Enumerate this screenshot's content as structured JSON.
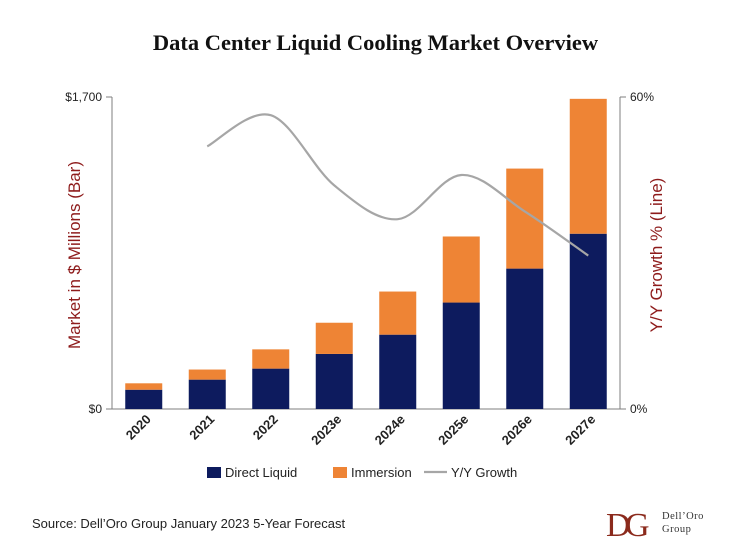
{
  "chart_data": {
    "type": "bar",
    "title": "Data Center Liquid Cooling Market Overview",
    "categories": [
      "2020",
      "2021",
      "2022",
      "2023e",
      "2024e",
      "2025e",
      "2026e",
      "2027e"
    ],
    "series": [
      {
        "name": "Direct Liquid",
        "type": "bar",
        "stacked": true,
        "axis": "left",
        "color": "#0d1b5e",
        "values": [
          105,
          160,
          220,
          300,
          405,
          580,
          765,
          955
        ]
      },
      {
        "name": "Immersion",
        "type": "bar",
        "stacked": true,
        "axis": "left",
        "color": "#ee8435",
        "values": [
          35,
          55,
          105,
          170,
          235,
          360,
          545,
          735
        ]
      },
      {
        "name": "Y/Y Growth",
        "type": "line",
        "axis": "right",
        "color": "#a6a6a6",
        "values": [
          null,
          50.5,
          56.5,
          43,
          36.5,
          45,
          38,
          29.5
        ]
      }
    ],
    "y_left": {
      "label": "Market in $ Millions (Bar)",
      "range": [
        0,
        1700
      ],
      "tick_labels": [
        "$0",
        "$1,700"
      ]
    },
    "y_right": {
      "label": "Y/Y Growth % (Line)",
      "range": [
        0,
        60
      ],
      "tick_labels": [
        "0%",
        "60%"
      ]
    },
    "grid": false,
    "legend": {
      "position": "bottom"
    }
  },
  "source": "Source: Dell’Oro Group January 2023 5-Year Forecast",
  "logo": {
    "line1": "Dell’Oro",
    "line2": "Group",
    "color": "#8b2a1c"
  },
  "colors": {
    "axis_label": "#8e1b1b",
    "axis": "#7f7f7f"
  }
}
